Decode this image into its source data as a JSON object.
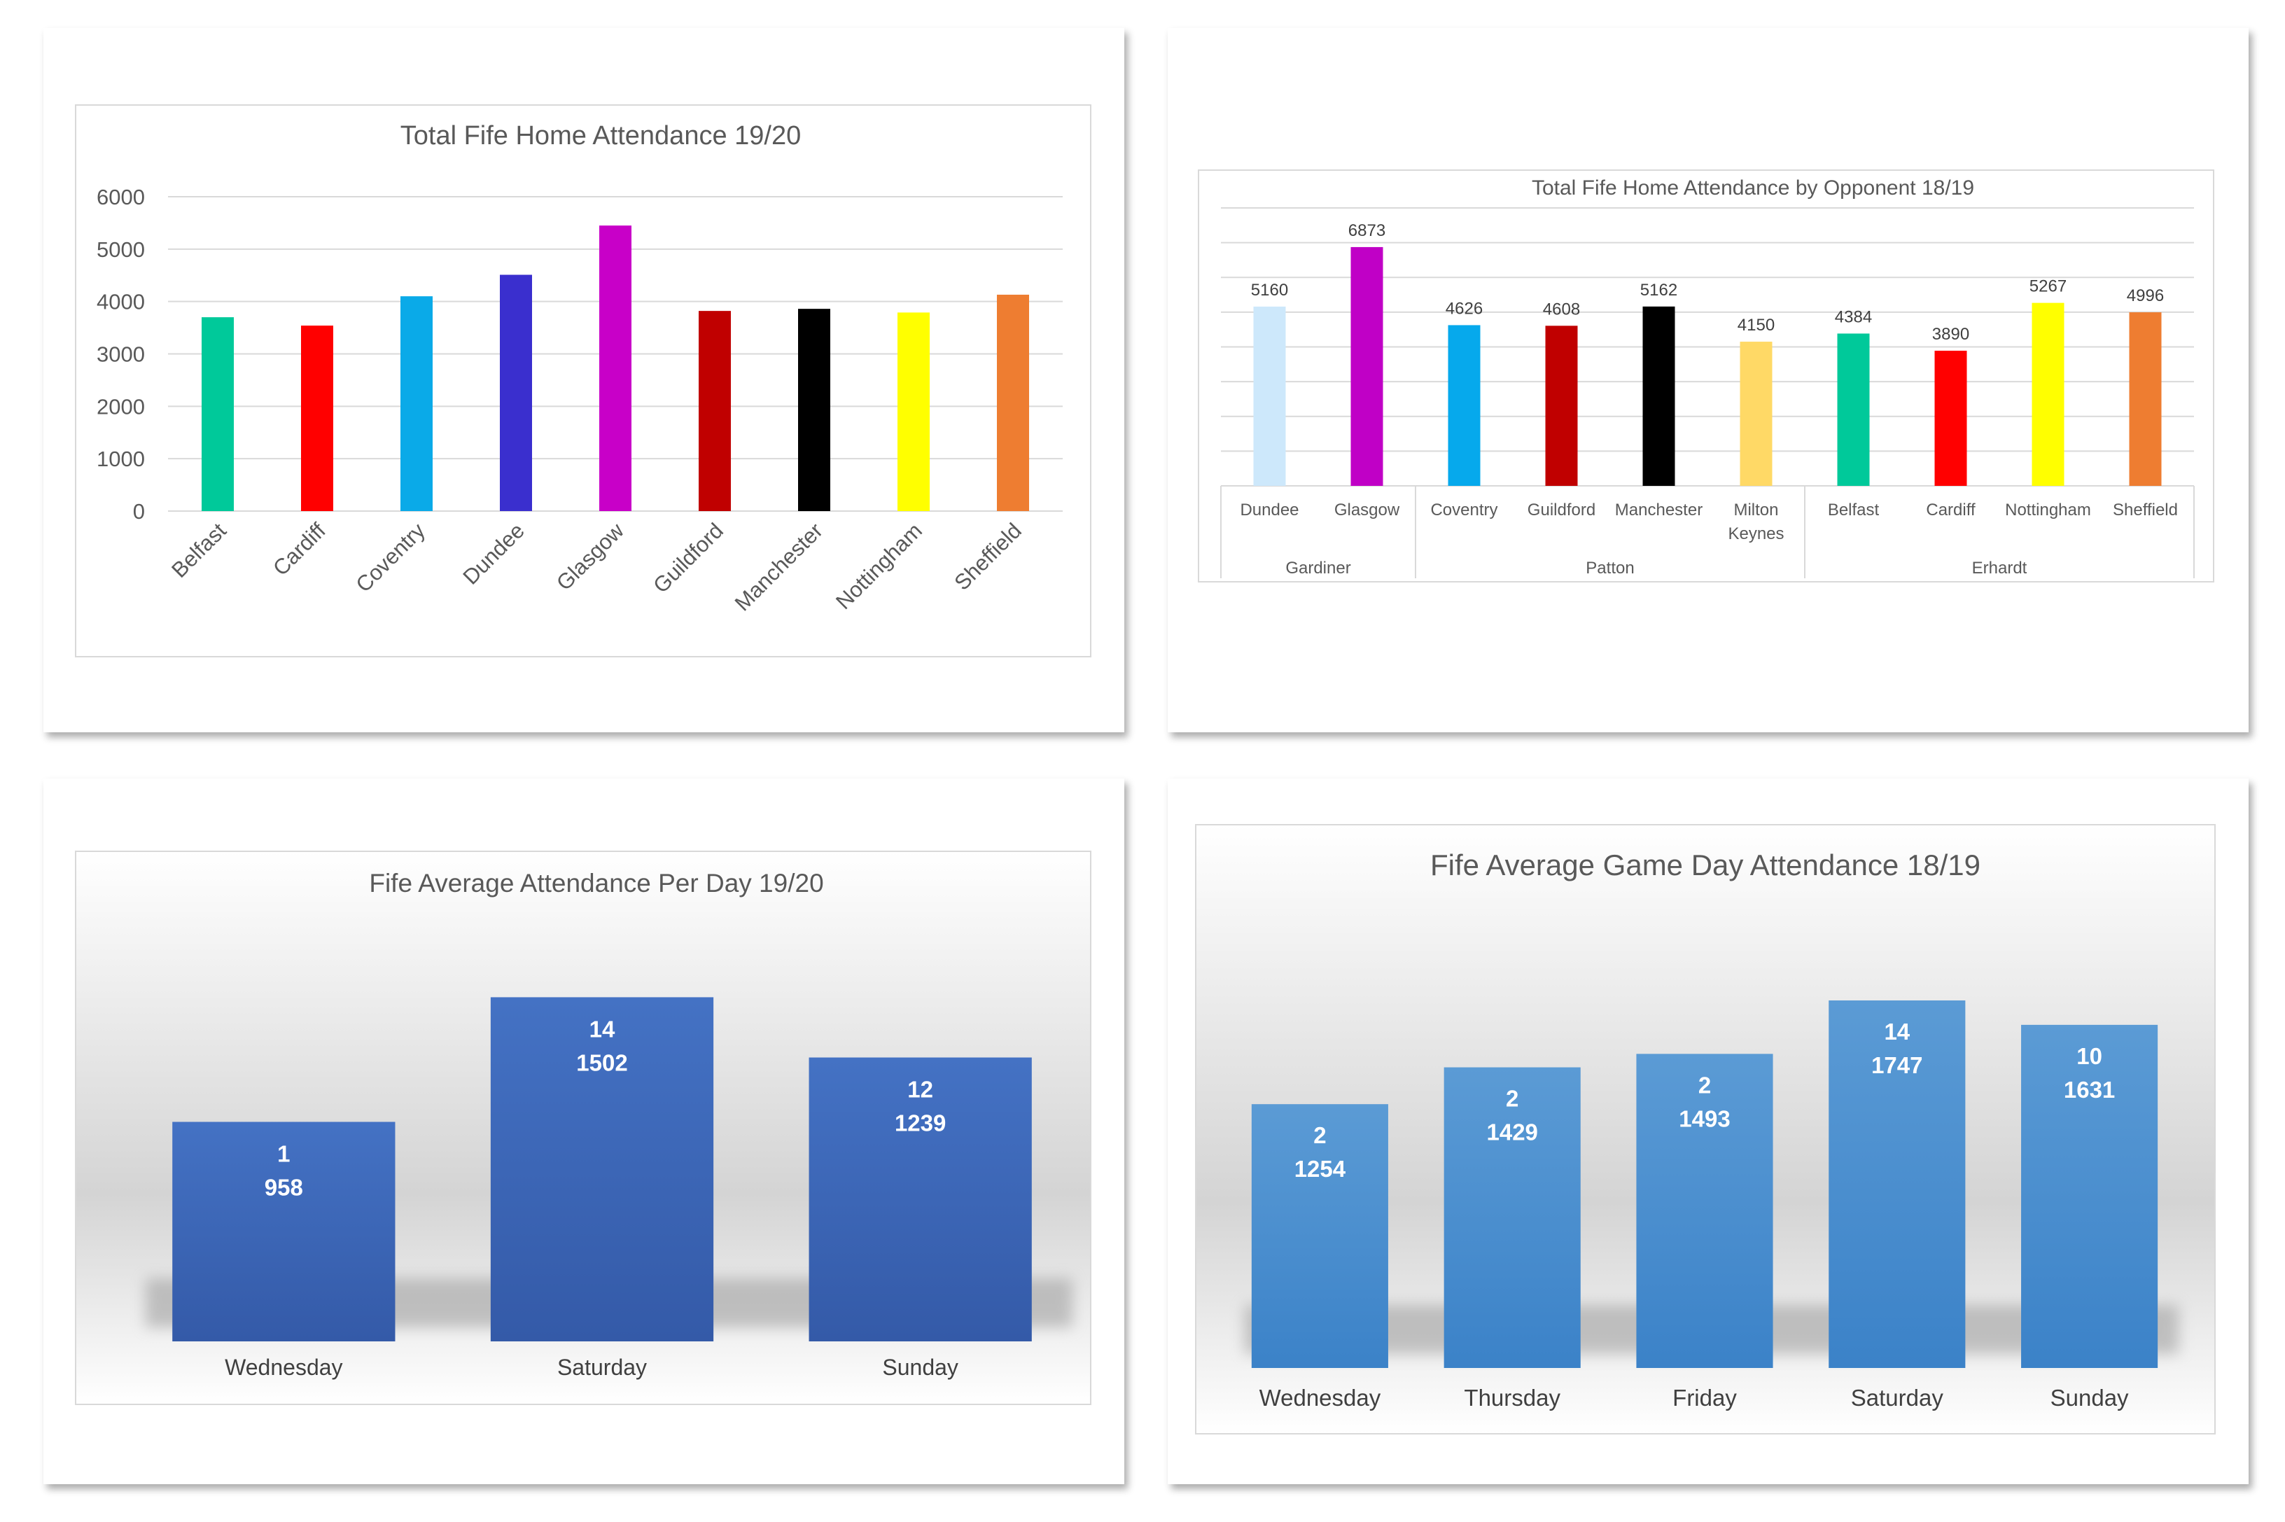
{
  "chart_data": [
    {
      "type": "bar",
      "title": "Total Fife Home Attendance 19/20",
      "xlabel": "",
      "ylabel": "",
      "ylim": [
        0,
        6000
      ],
      "yticks": [
        "0",
        "1000",
        "2000",
        "3000",
        "4000",
        "5000",
        "6000"
      ],
      "grid": true,
      "categories": [
        "Belfast",
        "Cardiff",
        "Coventry",
        "Dundee",
        "Glasgow",
        "Guildford",
        "Manchester",
        "Nottingham",
        "Sheffield"
      ],
      "values": [
        3700,
        3540,
        4100,
        4510,
        5450,
        3820,
        3860,
        3790,
        4130
      ],
      "colors": [
        "#00c99a",
        "#ff0000",
        "#0aaae8",
        "#3a2fce",
        "#c800c8",
        "#c00000",
        "#000000",
        "#ffff00",
        "#ee7d31"
      ]
    },
    {
      "type": "bar",
      "title": "Total Fife Home Attendance by Opponent 18/19",
      "xlabel": "",
      "ylabel": "",
      "ylim": [
        0,
        8000
      ],
      "grid": true,
      "categories": [
        "Dundee",
        "Glasgow",
        "Coventry",
        "Guildford",
        "Manchester",
        "Milton Keynes",
        "Belfast",
        "Cardiff",
        "Nottingham",
        "Sheffield"
      ],
      "category_lines": [
        [
          "Dundee"
        ],
        [
          "Glasgow"
        ],
        [
          "Coventry"
        ],
        [
          "Guildford"
        ],
        [
          "Manchester"
        ],
        [
          "Milton",
          "Keynes"
        ],
        [
          "Belfast"
        ],
        [
          "Cardiff"
        ],
        [
          "Nottingham"
        ],
        [
          "Sheffield"
        ]
      ],
      "groups": [
        {
          "name": "Gardiner",
          "count": 2
        },
        {
          "name": "Patton",
          "count": 4
        },
        {
          "name": "Erhardt",
          "count": 4
        }
      ],
      "values": [
        5160,
        6873,
        4626,
        4608,
        5162,
        4150,
        4384,
        3890,
        5267,
        4996
      ],
      "data_labels": [
        "5160",
        "6873",
        "4626",
        "4608",
        "5162",
        "4150",
        "4384",
        "3890",
        "5267",
        "4996"
      ],
      "colors": [
        "#cde8fb",
        "#c000c6",
        "#06a9ec",
        "#c00000",
        "#000000",
        "#ffd966",
        "#00c99a",
        "#ff0000",
        "#ffff00",
        "#ee7d31"
      ]
    },
    {
      "type": "bar",
      "title": "Fife Average Attendance Per Day 19/20",
      "xlabel": "",
      "ylabel": "",
      "ylim": [
        0,
        1650
      ],
      "categories": [
        "Wednesday",
        "Saturday",
        "Sunday"
      ],
      "values": [
        958,
        1502,
        1239
      ],
      "games": [
        1,
        14,
        12
      ],
      "data_labels": [
        [
          "1",
          "958"
        ],
        [
          "14",
          "1502"
        ],
        [
          "12",
          "1239"
        ]
      ],
      "bar_color": "#4472c4"
    },
    {
      "type": "bar",
      "title": "Fife Average Game Day Attendance 18/19",
      "xlabel": "",
      "ylabel": "",
      "ylim": [
        0,
        1950
      ],
      "categories": [
        "Wednesday",
        "Thursday",
        "Friday",
        "Saturday",
        "Sunday"
      ],
      "values": [
        1254,
        1429,
        1493,
        1747,
        1631
      ],
      "games": [
        2,
        2,
        2,
        14,
        10
      ],
      "data_labels": [
        [
          "2",
          "1254"
        ],
        [
          "2",
          "1429"
        ],
        [
          "2",
          "1493"
        ],
        [
          "14",
          "1747"
        ],
        [
          "10",
          "1631"
        ]
      ],
      "bar_color": "#5b9bd5"
    }
  ]
}
